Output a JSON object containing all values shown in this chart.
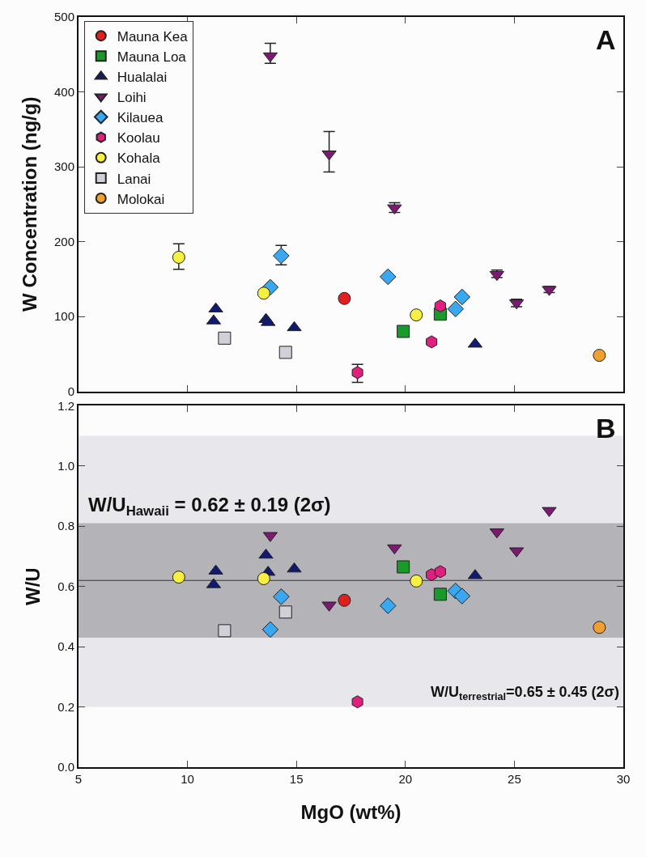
{
  "chart_data": [
    {
      "type": "scatter",
      "ylabel": "W Concentration (ng/g)",
      "xlim": [
        5,
        30
      ],
      "xticks": [
        5,
        10,
        15,
        20,
        25,
        30
      ],
      "ylim": [
        0,
        500
      ],
      "yticks": [
        0,
        100,
        200,
        300,
        400,
        500
      ],
      "tick_labels": "y",
      "grid": false,
      "legend": "top left",
      "annotations": [
        "A"
      ],
      "series": [
        {
          "name": "Mauna Kea",
          "color": "#e0201f",
          "marker": "circle",
          "x": [
            17.2
          ],
          "values": [
            124
          ]
        },
        {
          "name": "Mauna Loa",
          "color": "#1a9a2a",
          "marker": "square",
          "x": [
            19.9,
            21.6
          ],
          "values": [
            80,
            103
          ]
        },
        {
          "name": "Hualalai",
          "color": "#101a70",
          "marker": "triangle",
          "x": [
            11.3,
            11.2,
            13.6,
            13.7,
            14.9,
            23.2
          ],
          "values": [
            110,
            94,
            96,
            92,
            85,
            63
          ]
        },
        {
          "name": "Loihi",
          "color": "#7a1a70",
          "marker": "triangle-down",
          "x": [
            13.8,
            16.5,
            19.5,
            24.2,
            25.1,
            26.6
          ],
          "values": [
            448,
            317,
            245,
            156,
            118,
            136
          ],
          "errors": [
            [
              438,
              465
            ],
            [
              293,
              347
            ],
            [
              239,
              252
            ],
            [
              152,
              162
            ],
            [
              113,
              123
            ],
            [
              132,
              140
            ]
          ]
        },
        {
          "name": "Kilauea",
          "color": "#3aa8f0",
          "marker": "diamond",
          "x": [
            13.8,
            14.3,
            19.2,
            22.3,
            22.6
          ],
          "values": [
            139,
            181,
            153,
            110,
            126
          ],
          "errors": [
            null,
            [
              169,
              195
            ],
            null,
            null,
            null
          ]
        },
        {
          "name": "Koolau",
          "color": "#e0207f",
          "x": [
            17.8,
            21.2,
            21.6
          ],
          "values": [
            25,
            66,
            114
          ],
          "errors": [
            [
              12,
              36
            ],
            null,
            null
          ]
        },
        {
          "name": "Kohala",
          "color": "#f8f040",
          "marker": "circle",
          "x": [
            9.6,
            13.5,
            20.5
          ],
          "values": [
            179,
            131,
            102
          ],
          "errors": [
            [
              163,
              197
            ],
            null,
            null
          ]
        },
        {
          "name": "Lanai",
          "color": "#d0d0d8",
          "marker": "square",
          "x": [
            11.7,
            14.5
          ],
          "values": [
            71,
            52
          ]
        },
        {
          "name": "Molokai",
          "color": "#f0a030",
          "marker": "circle",
          "x": [
            28.9
          ],
          "values": [
            48
          ]
        }
      ]
    },
    {
      "type": "scatter",
      "xlabel": "MgO (wt%)",
      "ylabel": "W/U",
      "xlim": [
        5,
        30
      ],
      "xticks": [
        5,
        10,
        15,
        20,
        25,
        30
      ],
      "ylim": [
        0,
        1.2
      ],
      "yticks": [
        {
          "value": 0,
          "label": "0.0"
        },
        0.2,
        0.4,
        0.6,
        0.8,
        {
          "value": 1,
          "label": "1.0"
        },
        1.2
      ],
      "grid": false,
      "annotations": [
        "B"
      ],
      "bands": [
        {
          "axis": "y",
          "from": 0.2,
          "to": 1.1,
          "color": "#e8e8ec",
          "label": "W/U$_{terrestrial}$=0.65 ± 0.45 (2σ)"
        },
        {
          "axis": "y",
          "from": 0.43,
          "to": 0.81,
          "color": "#b4b4b8",
          "label": "W/U$_{Hawaii}$ = 0.62 ± 0.19 (2σ)"
        }
      ],
      "ref_lines": [
        {
          "axis": "y",
          "value": 0.62,
          "color": "#333333",
          "line_style": "solid"
        }
      ],
      "series": [
        {
          "color": "#e0201f",
          "marker": "circle",
          "x": [
            17.2
          ],
          "values": [
            0.554
          ]
        },
        {
          "color": "#1a9a2a",
          "marker": "square",
          "x": [
            19.9,
            21.6
          ],
          "values": [
            0.665,
            0.574
          ]
        },
        {
          "color": "#101a70",
          "marker": "triangle",
          "x": [
            11.3,
            11.2,
            13.6,
            13.7,
            14.9,
            23.2
          ],
          "values": [
            0.651,
            0.606,
            0.704,
            0.647,
            0.658,
            0.636
          ]
        },
        {
          "color": "#7a1a70",
          "marker": "triangle-down",
          "x": [
            13.8,
            16.5,
            19.5,
            24.2,
            25.1,
            26.6
          ],
          "values": [
            0.769,
            0.538,
            0.728,
            0.781,
            0.718,
            0.852
          ]
        },
        {
          "color": "#3aa8f0",
          "marker": "diamond",
          "x": [
            13.8,
            14.3,
            19.2,
            22.3,
            22.6
          ],
          "values": [
            0.457,
            0.566,
            0.536,
            0.585,
            0.568
          ]
        },
        {
          "color": "#e0207f",
          "x": [
            17.8,
            21.2,
            21.6
          ],
          "values": [
            0.217,
            0.639,
            0.649
          ]
        },
        {
          "color": "#f8f040",
          "marker": "circle",
          "x": [
            9.6,
            13.5,
            20.5
          ],
          "values": [
            0.631,
            0.626,
            0.618
          ]
        },
        {
          "color": "#d0d0d8",
          "marker": "square",
          "x": [
            11.7,
            14.5
          ],
          "values": [
            0.453,
            0.515
          ]
        },
        {
          "color": "#f0a030",
          "marker": "circle",
          "x": [
            28.9
          ],
          "values": [
            0.464
          ]
        }
      ]
    }
  ]
}
